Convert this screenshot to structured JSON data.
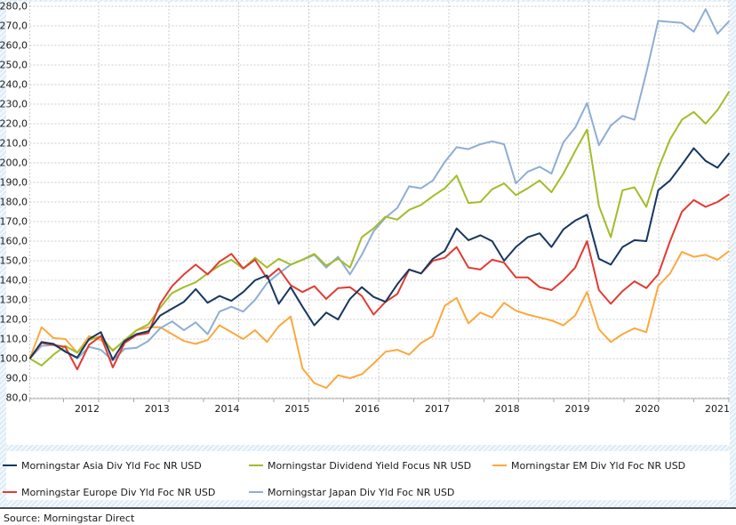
{
  "chart_data": {
    "type": "line",
    "title": "",
    "grid": true,
    "legend_position": "bottom",
    "start_value": 100,
    "x_axis": {
      "year_labels": [
        "2012",
        "2013",
        "2014",
        "2015",
        "2016",
        "2017",
        "2018",
        "2019",
        "2020",
        "2021"
      ]
    },
    "y_axis": {
      "min": 80,
      "max": 280,
      "step": 10,
      "decimal_separator": ",",
      "tick_label_example": "280,0"
    },
    "series": [
      {
        "name": "Morningstar Asia Div Yld Foc NR USD",
        "color": "#17375e",
        "values": [
          100,
          108.5,
          107.5,
          103.5,
          100.5,
          110,
          113.5,
          99.5,
          109,
          112.5,
          114,
          122,
          125.5,
          129,
          135.5,
          128.5,
          132,
          129.5,
          134,
          140,
          142.5,
          128,
          136.5,
          126.5,
          117,
          123.5,
          120,
          130.5,
          136.5,
          131.5,
          129,
          138,
          145.5,
          143.5,
          151,
          155,
          166.5,
          160.5,
          163,
          160,
          150,
          157,
          162,
          164,
          157,
          166,
          170.5,
          173.5,
          151,
          148,
          157,
          160.5,
          160,
          186,
          191,
          199,
          207.5,
          201,
          197.5,
          205
        ]
      },
      {
        "name": "Morningstar Dividend Yield Focus NR USD",
        "color": "#a2bd2a",
        "values": [
          100,
          96.5,
          102,
          106.5,
          103,
          109.5,
          111.5,
          104,
          109.5,
          114.5,
          117.5,
          126,
          133.5,
          136.5,
          139,
          143.5,
          147.5,
          150.5,
          146,
          151.5,
          146.5,
          151,
          148,
          150.5,
          153.5,
          147.5,
          151,
          146.5,
          162,
          166.5,
          172.5,
          171,
          176,
          178.5,
          183,
          187,
          193.5,
          179.5,
          180,
          186.5,
          189.5,
          183.5,
          187,
          191,
          185,
          194.5,
          206,
          217,
          178,
          162,
          186,
          187.5,
          177.5,
          197,
          212,
          222,
          226,
          220,
          227,
          236.5
        ]
      },
      {
        "name": "Morningstar EM Div Yld Foc NR USD",
        "color": "#faa93d",
        "values": [
          100,
          116,
          110.5,
          110,
          103,
          111.5,
          109.5,
          104.5,
          108.5,
          114.5,
          116,
          116,
          112.5,
          109,
          107.5,
          109.5,
          117,
          113.5,
          110,
          114.5,
          108.5,
          116.5,
          121.5,
          95,
          87.5,
          85,
          91.5,
          90,
          92,
          97.5,
          103.5,
          104.5,
          102,
          108,
          111.5,
          127,
          131,
          118,
          123.5,
          121,
          128.5,
          124.5,
          122.5,
          121,
          119.5,
          117,
          122,
          134,
          115,
          108.5,
          112.5,
          115.5,
          113.5,
          137,
          143.5,
          154.5,
          152,
          153,
          150.5,
          155
        ]
      },
      {
        "name": "Morningstar Europe Div Yld Foc NR USD",
        "color": "#e13b33",
        "values": [
          100,
          108,
          107,
          106,
          94.5,
          107,
          111.5,
          95.5,
          108,
          112,
          113,
          128,
          137,
          143,
          148,
          143,
          149.5,
          153.5,
          146,
          150.5,
          141,
          146,
          137.5,
          134,
          137,
          130.5,
          136,
          136.5,
          132,
          122.5,
          129,
          133,
          145.5,
          143.5,
          150,
          151.5,
          157,
          146.5,
          145.5,
          150.5,
          149,
          141.5,
          141.5,
          136.5,
          135,
          140,
          146.5,
          160,
          135,
          128,
          134.5,
          139.5,
          136,
          143,
          160,
          175,
          181,
          177.5,
          180,
          184
        ]
      },
      {
        "name": "Morningstar Japan Div Yld Foc NR USD",
        "color": "#8faed3",
        "values": [
          100,
          106.5,
          107,
          104,
          100,
          106,
          104.5,
          99,
          105,
          105.5,
          109,
          115.5,
          119,
          114.5,
          118.5,
          112.5,
          124,
          126.5,
          124,
          130,
          138.5,
          143.5,
          148,
          150.5,
          153,
          146.5,
          152,
          143,
          153,
          165,
          172,
          177,
          188,
          187,
          191,
          200.5,
          208,
          207,
          209.5,
          211,
          209.5,
          189.5,
          195.5,
          198,
          194.5,
          210.5,
          218,
          230.5,
          209,
          219,
          224,
          222,
          246,
          272.5,
          272,
          271.5,
          267,
          278.5,
          266,
          272.5
        ]
      }
    ]
  },
  "legend": {
    "rows": [
      [
        0,
        1,
        2
      ],
      [
        3,
        4
      ]
    ]
  },
  "source": {
    "label": "Source: Morningstar Direct"
  }
}
